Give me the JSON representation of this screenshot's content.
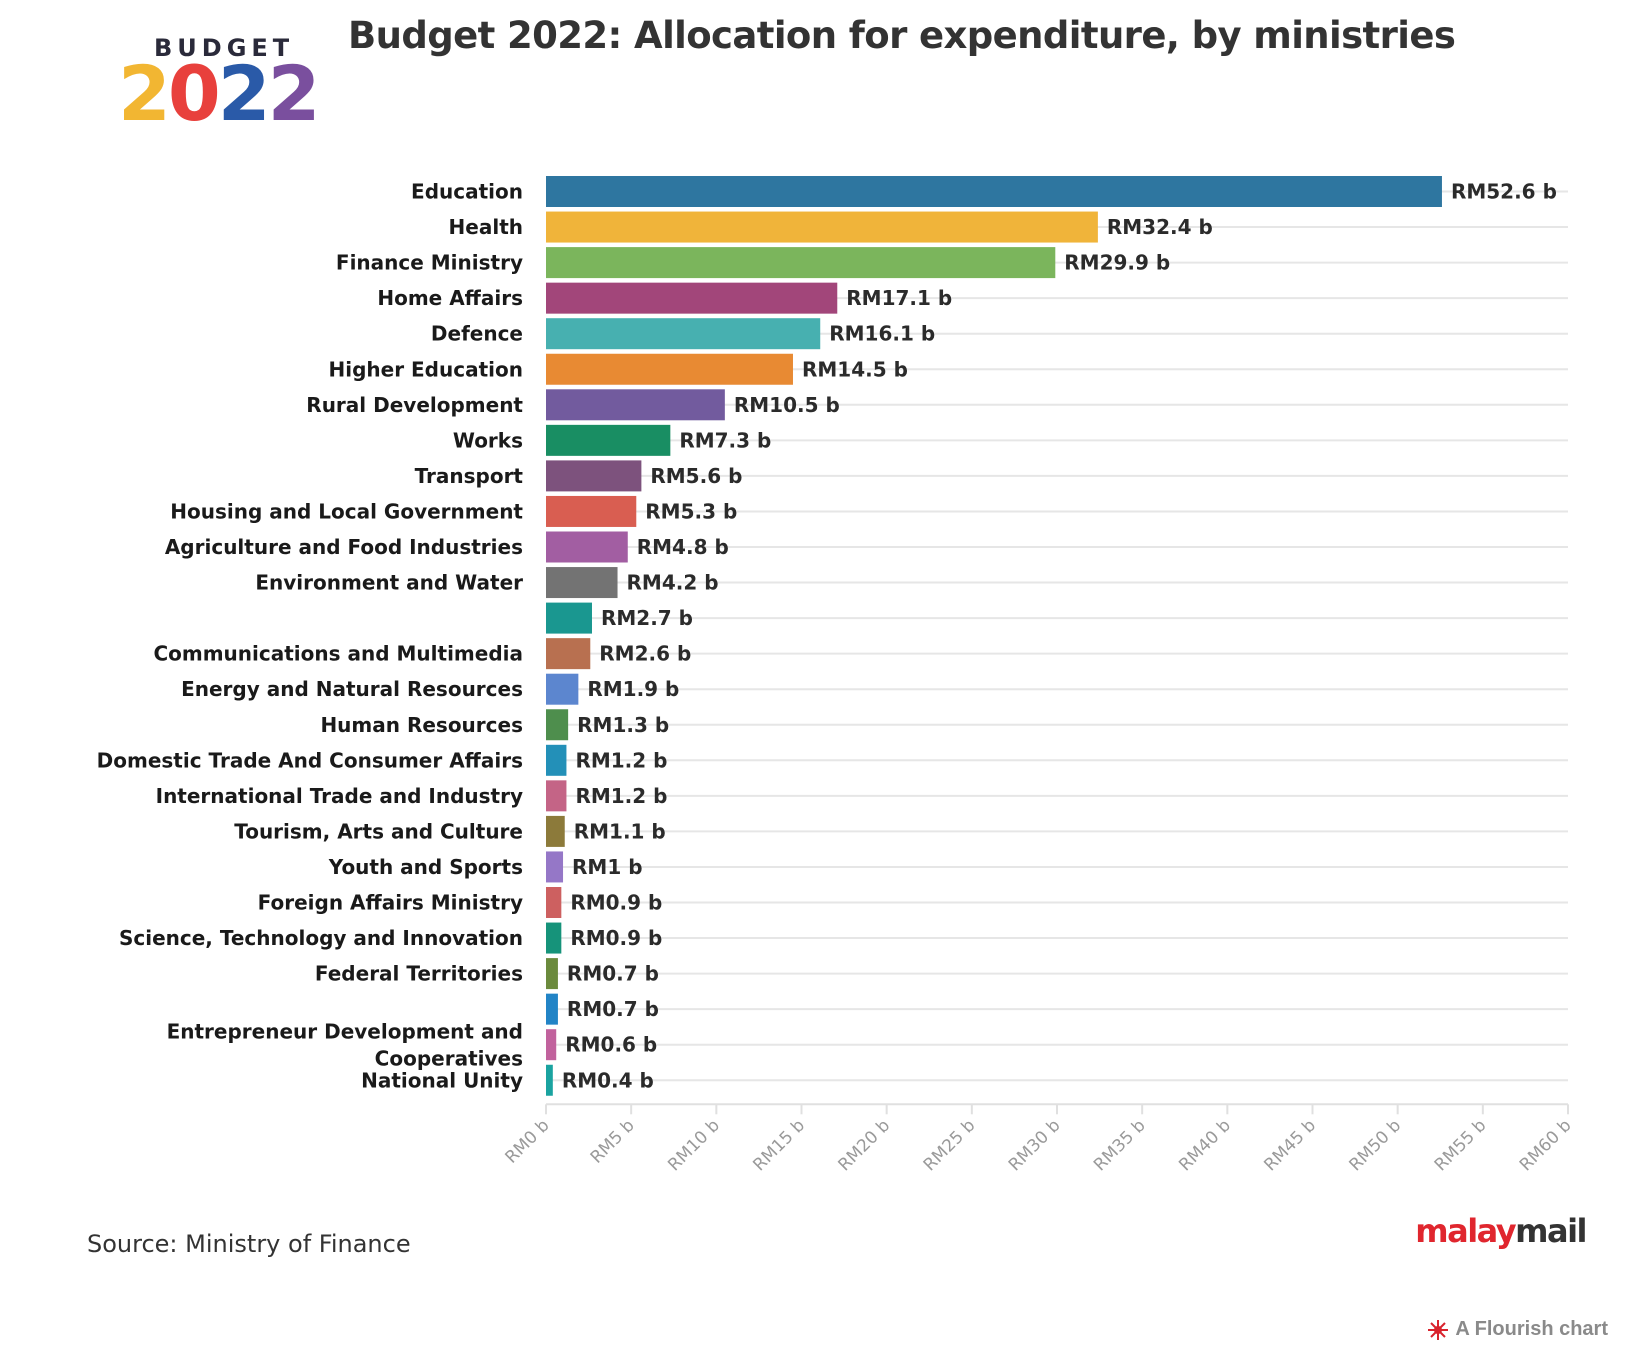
{
  "logo": {
    "word": "BUDGET",
    "year": "2022"
  },
  "title": "Budget 2022: Allocation for expenditure, by ministries",
  "chart_data": {
    "type": "bar",
    "orientation": "horizontal",
    "title": "Budget 2022: Allocation for expenditure, by ministries",
    "xlabel": "",
    "ylabel": "",
    "xlim": [
      0,
      60
    ],
    "grid": true,
    "x_ticks": [
      "RM0 b",
      "RM5 b",
      "RM10 b",
      "RM15 b",
      "RM20 b",
      "RM25 b",
      "RM30 b",
      "RM35 b",
      "RM40 b",
      "RM45 b",
      "RM50 b",
      "RM55 b",
      "RM60 b"
    ],
    "categories": [
      "Education",
      "Health",
      "Finance Ministry",
      "Home Affairs",
      "Defence",
      "Higher Education",
      "Rural Development",
      "Works",
      "Transport",
      "Housing and Local Government",
      "Agriculture and Food Industries",
      "Environment and Water",
      "",
      "Communications and Multimedia",
      "Energy and Natural Resources",
      "Human Resources",
      "Domestic Trade And Consumer Affairs",
      "International Trade and Industry",
      "Tourism, Arts and Culture",
      "Youth and Sports",
      "Foreign Affairs Ministry",
      "Science, Technology and Innovation",
      "Federal Territories",
      "",
      "Entrepreneur Development and Cooperatives",
      "National Unity"
    ],
    "values": [
      52.6,
      32.4,
      29.9,
      17.1,
      16.1,
      14.5,
      10.5,
      7.3,
      5.6,
      5.3,
      4.8,
      4.2,
      2.7,
      2.6,
      1.9,
      1.3,
      1.2,
      1.2,
      1.1,
      1.0,
      0.9,
      0.9,
      0.7,
      0.7,
      0.6,
      0.4
    ],
    "value_labels": [
      "RM52.6 b",
      "RM32.4 b",
      "RM29.9 b",
      "RM17.1 b",
      "RM16.1 b",
      "RM14.5 b",
      "RM10.5 b",
      "RM7.3 b",
      "RM5.6 b",
      "RM5.3 b",
      "RM4.8 b",
      "RM4.2 b",
      "RM2.7 b",
      "RM2.6 b",
      "RM1.9 b",
      "RM1.3 b",
      "RM1.2 b",
      "RM1.2 b",
      "RM1.1 b",
      "RM1 b",
      "RM0.9 b",
      "RM0.9 b",
      "RM0.7 b",
      "RM0.7 b",
      "RM0.6 b",
      "RM0.4 b"
    ],
    "colors": [
      "#2e76a0",
      "#f0b43a",
      "#7bb55c",
      "#a2467a",
      "#47b0b0",
      "#e88a33",
      "#725b9e",
      "#198e63",
      "#7d527d",
      "#d95e51",
      "#a25ea2",
      "#737373",
      "#1a9790",
      "#b87050",
      "#5c86cf",
      "#4e8e4d",
      "#2390b8",
      "#c46486",
      "#8c7a3a",
      "#9577c7",
      "#cd6060",
      "#16937a",
      "#6b8a3d",
      "#2284c6",
      "#c1629d",
      "#1aa3a0"
    ]
  },
  "source": "Source: Ministry of Finance",
  "brand": {
    "part1": "malay",
    "part2": "mail"
  },
  "flourish": "A Flourish chart"
}
